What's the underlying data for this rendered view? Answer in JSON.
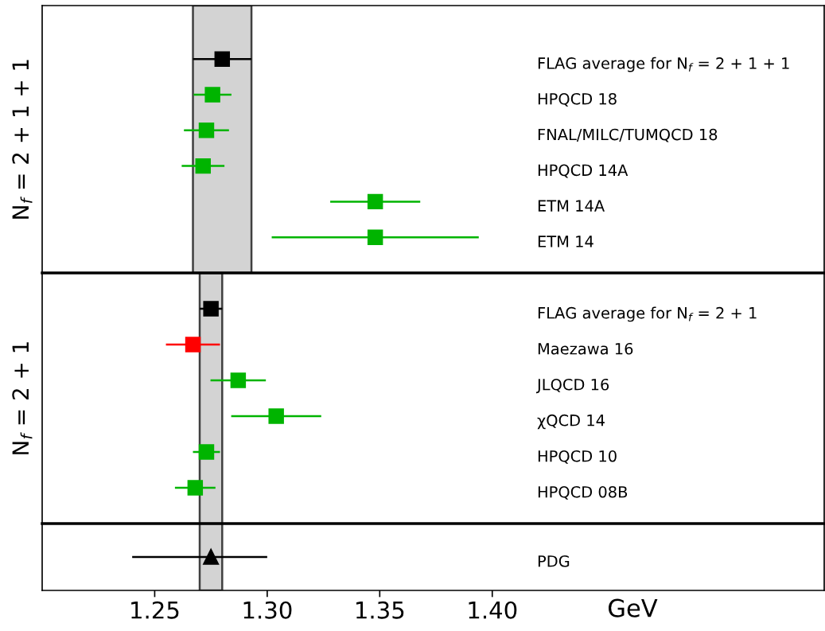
{
  "chart_data": [
    {
      "type": "scatter",
      "orientation": "horizontal",
      "ylabel": "N$_{f}$ = 2 + 1 + 1",
      "tick_labels": false,
      "marker": "square",
      "xlim": [
        1.2,
        1.5475
      ],
      "categories": [
        "FLAG average for N$_{f}$ = 2 + 1 + 1",
        "HPQCD 18",
        "FNAL/MILC/TUMQCD 18",
        "HPQCD 14A",
        "ETM 14A",
        "ETM 14"
      ],
      "values": [
        1.28,
        1.2757,
        1.273,
        1.2715,
        1.348,
        1.348
      ],
      "errors": [
        [
          1.267,
          1.293
        ],
        [
          1.2673,
          1.2841
        ],
        [
          1.263,
          1.283
        ],
        [
          1.262,
          1.281
        ],
        [
          1.328,
          1.368
        ],
        [
          1.302,
          1.394
        ]
      ],
      "colors": [
        "#000000",
        "#00b400",
        "#00b400",
        "#00b400",
        "#00b400",
        "#00b400"
      ],
      "bands": [
        {
          "axis": "x",
          "from": 1.267,
          "to": 1.293,
          "color": "#d3d3d3"
        }
      ]
    },
    {
      "type": "scatter",
      "orientation": "horizontal",
      "ylabel": "N$_{f}$ = 2 + 1",
      "tick_labels": false,
      "marker": "square",
      "xlim": [
        1.2,
        1.5475
      ],
      "categories": [
        "FLAG average for N$_{f}$ = 2 + 1",
        "Maezawa 16",
        "JLQCD 16",
        "χQCD 14",
        "HPQCD 10",
        "HPQCD 08B"
      ],
      "values": [
        1.275,
        1.267,
        1.2871,
        1.304,
        1.273,
        1.268
      ],
      "errors": [
        [
          1.27,
          1.28
        ],
        [
          1.255,
          1.279
        ],
        [
          1.2748,
          1.2994
        ],
        [
          1.284,
          1.324
        ],
        [
          1.267,
          1.279
        ],
        [
          1.259,
          1.277
        ]
      ],
      "colors": [
        "#000000",
        "#ff0000",
        "#00b400",
        "#00b400",
        "#00b400",
        "#00b400"
      ],
      "bands": [
        {
          "axis": "x",
          "from": 1.27,
          "to": 1.28,
          "color": "#d3d3d3"
        }
      ]
    },
    {
      "type": "scatter",
      "orientation": "horizontal",
      "xlabel": "GeV",
      "tick_labels": "x",
      "marker": "triangle",
      "xlim": [
        1.2,
        1.5475
      ],
      "xticks": [
        1.25,
        {
          "value": 1.3,
          "label": "1.30"
        },
        1.35,
        {
          "value": 1.4,
          "label": "1.40"
        }
      ],
      "categories": [
        "PDG"
      ],
      "values": [
        1.275
      ],
      "errors": [
        [
          1.24,
          1.3
        ]
      ],
      "colors": [
        "#000000"
      ],
      "bands": [
        {
          "axis": "x",
          "from": 1.27,
          "to": 1.28,
          "color": "#d3d3d3"
        }
      ]
    }
  ]
}
